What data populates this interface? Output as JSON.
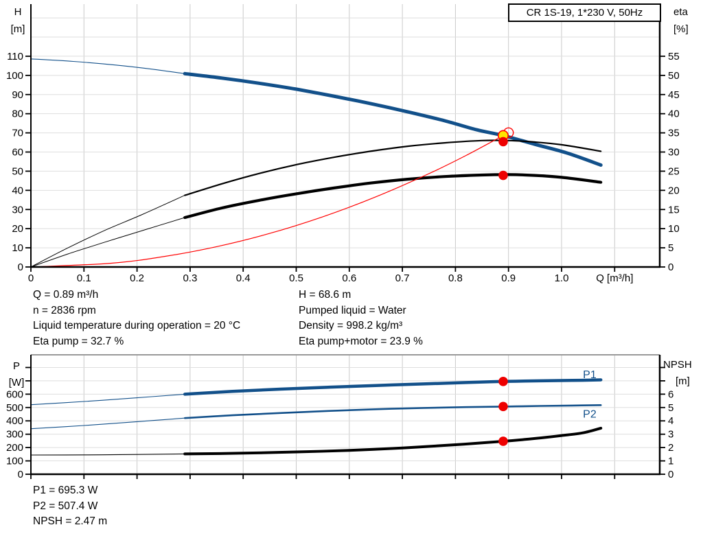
{
  "title_box": {
    "label": "CR 1S-19, 1*230 V, 50Hz"
  },
  "info_top": {
    "left": [
      "Q = 0.89 m³/h",
      "n = 2836 rpm",
      "Liquid temperature during operation = 20 °C",
      "Eta pump = 32.7 %"
    ],
    "right": [
      "H = 68.6 m",
      "Pumped liquid = Water",
      "Density = 998.2 kg/m³",
      "Eta pump+motor = 23.9 %"
    ]
  },
  "info_bottom": [
    "P1 = 695.3 W",
    "P2 = 507.4 W",
    "NPSH = 2.47 m"
  ],
  "colors": {
    "curve_blue": "#12508a",
    "curve_black": "#000000",
    "curve_red": "#ff0000",
    "marker_red": "#ee0000",
    "duty_yellow": "#ffe500",
    "grid_vertical": "#c9c9c9",
    "grid_horizontal": "#dedede",
    "axis": "#000000",
    "top_border_gray": "#999999"
  },
  "chart_data": [
    {
      "type": "line",
      "name": "qh-performance-chart",
      "x_axis": {
        "min": 0,
        "max": 1.185,
        "tick_values": [
          0,
          0.1,
          0.2,
          0.3,
          0.4,
          0.5,
          0.6,
          0.7,
          0.8,
          0.9,
          1.0,
          1.1
        ],
        "tick_labels": [
          "0",
          "0.1",
          "0.2",
          "0.3",
          "0.4",
          "0.5",
          "0.6",
          "0.7",
          "0.8",
          "0.9",
          "1.0",
          ""
        ],
        "grid_values": [
          0.1,
          0.2,
          0.3,
          0.4,
          0.5,
          0.6,
          0.7,
          0.8,
          0.9,
          1.0,
          1.1
        ],
        "label": "Q [m³/h]",
        "label_at": 1.1
      },
      "y_left": {
        "title": [
          "H",
          "[m]"
        ],
        "min": 0,
        "max": 137.2,
        "tick_values": [
          0,
          10,
          20,
          30,
          40,
          50,
          60,
          70,
          80,
          90,
          100,
          110
        ],
        "extra_tick_values": [],
        "grid_values": [
          10,
          20,
          30,
          40,
          50,
          60,
          70,
          80,
          90,
          100,
          110,
          120,
          130
        ]
      },
      "y_right": {
        "title": [
          "eta",
          "[%]"
        ],
        "min": 0,
        "max": 68.6,
        "tick_values": [
          0,
          5,
          10,
          15,
          20,
          25,
          30,
          35,
          40,
          45,
          50,
          55
        ],
        "extra_tick_values": []
      },
      "top_border": false,
      "series": [
        {
          "name": "head-curve",
          "color": "#12508a",
          "axis": "left",
          "segments": [
            {
              "w": 1.1,
              "points": [
                [
                  0,
                  108.6
                ],
                [
                  0.08,
                  107.3
                ],
                [
                  0.16,
                  105.4
                ],
                [
                  0.23,
                  103.2
                ],
                [
                  0.29,
                  100.9
                ]
              ]
            },
            {
              "w": 5.0,
              "points": [
                [
                  0.29,
                  100.9
                ],
                [
                  0.36,
                  98.6
                ],
                [
                  0.43,
                  95.9
                ],
                [
                  0.5,
                  92.8
                ],
                [
                  0.57,
                  89.2
                ],
                [
                  0.64,
                  85.3
                ],
                [
                  0.71,
                  81.0
                ],
                [
                  0.78,
                  76.3
                ],
                [
                  0.84,
                  71.6
                ],
                [
                  0.89,
                  68.6
                ],
                [
                  0.95,
                  64.0
                ],
                [
                  1.01,
                  59.5
                ],
                [
                  1.074,
                  53.2
                ]
              ]
            }
          ]
        },
        {
          "name": "eta-pump-curve",
          "color": "#000000",
          "axis": "right",
          "segments": [
            {
              "w": 1.0,
              "points": [
                [
                  0,
                  0
                ],
                [
                  0.07,
                  5.0
                ],
                [
                  0.14,
                  9.6
                ],
                [
                  0.21,
                  13.7
                ],
                [
                  0.29,
                  18.7
                ]
              ]
            },
            {
              "w": 2.2,
              "points": [
                [
                  0.29,
                  18.7
                ],
                [
                  0.36,
                  21.7
                ],
                [
                  0.43,
                  24.4
                ],
                [
                  0.5,
                  26.7
                ],
                [
                  0.57,
                  28.6
                ],
                [
                  0.64,
                  30.2
                ],
                [
                  0.71,
                  31.5
                ],
                [
                  0.78,
                  32.4
                ],
                [
                  0.85,
                  33.0
                ],
                [
                  0.9,
                  33.0
                ],
                [
                  0.95,
                  32.6
                ],
                [
                  1.0,
                  31.9
                ],
                [
                  1.074,
                  30.2
                ]
              ]
            }
          ]
        },
        {
          "name": "eta-pump-motor-curve",
          "color": "#000000",
          "axis": "right",
          "segments": [
            {
              "w": 1.0,
              "points": [
                [
                  0,
                  0
                ],
                [
                  0.07,
                  3.4
                ],
                [
                  0.14,
                  6.5
                ],
                [
                  0.21,
                  9.5
                ],
                [
                  0.29,
                  12.9
                ]
              ]
            },
            {
              "w": 4.2,
              "points": [
                [
                  0.29,
                  12.9
                ],
                [
                  0.36,
                  15.4
                ],
                [
                  0.43,
                  17.4
                ],
                [
                  0.5,
                  19.1
                ],
                [
                  0.57,
                  20.6
                ],
                [
                  0.64,
                  21.9
                ],
                [
                  0.71,
                  22.9
                ],
                [
                  0.78,
                  23.6
                ],
                [
                  0.85,
                  24.0
                ],
                [
                  0.9,
                  24.1
                ],
                [
                  0.95,
                  23.9
                ],
                [
                  1.0,
                  23.4
                ],
                [
                  1.074,
                  22.1
                ]
              ]
            }
          ]
        },
        {
          "name": "system-curve",
          "color": "#ff0000",
          "axis": "left",
          "segments": [
            {
              "w": 1.2,
              "points": [
                [
                  0,
                  0
                ],
                [
                  0.15,
                  1.95
                ],
                [
                  0.25,
                  5.4
                ],
                [
                  0.35,
                  10.6
                ],
                [
                  0.45,
                  17.5
                ],
                [
                  0.55,
                  26.2
                ],
                [
                  0.65,
                  36.6
                ],
                [
                  0.75,
                  48.7
                ],
                [
                  0.82,
                  58.2
                ],
                [
                  0.89,
                  68.6
                ]
              ]
            }
          ]
        }
      ],
      "series_labels": [],
      "markers": [
        {
          "name": "system-curve-end-marker",
          "type": "open",
          "x": 0.9,
          "v": 70.1,
          "axis": "left"
        },
        {
          "name": "duty-point",
          "type": "duty",
          "x": 0.89,
          "v": 68.6,
          "axis": "left"
        },
        {
          "name": "eta-pump-point",
          "type": "dot",
          "x": 0.89,
          "v": 32.7,
          "axis": "right"
        },
        {
          "name": "eta-pump-motor-point",
          "type": "dot",
          "x": 0.89,
          "v": 23.9,
          "axis": "right"
        }
      ]
    },
    {
      "type": "line",
      "name": "power-npsh-chart",
      "x_axis": {
        "min": 0,
        "max": 1.185,
        "tick_values": [
          0,
          0.1,
          0.2,
          0.3,
          0.4,
          0.5,
          0.6,
          0.7,
          0.8,
          0.9,
          1.0,
          1.1
        ],
        "tick_labels": [],
        "grid_values": [
          0.1,
          0.2,
          0.3,
          0.4,
          0.5,
          0.6,
          0.7,
          0.8,
          0.9,
          1.0,
          1.1
        ],
        "label": "",
        "label_at": null
      },
      "y_left": {
        "title": [
          "P",
          "[W]"
        ],
        "min": 0,
        "max": 895,
        "tick_values": [
          0,
          100,
          200,
          300,
          400,
          500,
          600
        ],
        "extra_tick_values": [
          700,
          800
        ],
        "grid_values": [
          100,
          200,
          300,
          400,
          500,
          600,
          700,
          800
        ]
      },
      "y_right": {
        "title": [
          "NPSH",
          "[m]"
        ],
        "min": 0,
        "max": 8.95,
        "tick_values": [
          0,
          1,
          2,
          3,
          4,
          5,
          6
        ],
        "extra_tick_values": [
          7,
          8
        ]
      },
      "top_border": true,
      "series": [
        {
          "name": "p1-curve",
          "color": "#12508a",
          "axis": "left",
          "segments": [
            {
              "w": 1.1,
              "points": [
                [
                  0,
                  521
                ],
                [
                  0.1,
                  545
                ],
                [
                  0.2,
                  573
                ],
                [
                  0.29,
                  600
                ]
              ]
            },
            {
              "w": 4.5,
              "points": [
                [
                  0.29,
                  600
                ],
                [
                  0.38,
                  621
                ],
                [
                  0.47,
                  638
                ],
                [
                  0.56,
                  652
                ],
                [
                  0.65,
                  665
                ],
                [
                  0.74,
                  677
                ],
                [
                  0.82,
                  687
                ],
                [
                  0.89,
                  695.3
                ],
                [
                  0.96,
                  700
                ],
                [
                  1.02,
                  703
                ],
                [
                  1.074,
                  707
                ]
              ]
            }
          ]
        },
        {
          "name": "p2-curve",
          "color": "#12508a",
          "axis": "left",
          "segments": [
            {
              "w": 1.1,
              "points": [
                [
                  0,
                  341
                ],
                [
                  0.1,
                  365
                ],
                [
                  0.2,
                  394
                ],
                [
                  0.29,
                  421
                ]
              ]
            },
            {
              "w": 2.6,
              "points": [
                [
                  0.29,
                  421
                ],
                [
                  0.38,
                  442
                ],
                [
                  0.47,
                  459
                ],
                [
                  0.56,
                  474
                ],
                [
                  0.65,
                  487
                ],
                [
                  0.74,
                  497
                ],
                [
                  0.82,
                  503
                ],
                [
                  0.89,
                  507.4
                ],
                [
                  0.96,
                  512
                ],
                [
                  1.02,
                  515
                ],
                [
                  1.074,
                  518
                ]
              ]
            }
          ]
        },
        {
          "name": "npsh-curve",
          "color": "#000000",
          "axis": "right",
          "segments": [
            {
              "w": 1.1,
              "points": [
                [
                  0,
                  1.44
                ],
                [
                  0.1,
                  1.45
                ],
                [
                  0.2,
                  1.48
                ],
                [
                  0.29,
                  1.52
                ]
              ]
            },
            {
              "w": 4.0,
              "points": [
                [
                  0.29,
                  1.52
                ],
                [
                  0.4,
                  1.58
                ],
                [
                  0.5,
                  1.67
                ],
                [
                  0.6,
                  1.79
                ],
                [
                  0.7,
                  1.97
                ],
                [
                  0.8,
                  2.21
                ],
                [
                  0.89,
                  2.47
                ],
                [
                  0.95,
                  2.68
                ],
                [
                  1.0,
                  2.9
                ],
                [
                  1.04,
                  3.1
                ],
                [
                  1.074,
                  3.45
                ]
              ]
            }
          ]
        }
      ],
      "series_labels": [
        {
          "text": "P1",
          "x": 1.053,
          "v": 745,
          "axis": "left"
        },
        {
          "text": "P2",
          "x": 1.053,
          "v": 450,
          "axis": "left"
        }
      ],
      "markers": [
        {
          "name": "p1-point",
          "type": "dot",
          "x": 0.89,
          "v": 695.3,
          "axis": "left"
        },
        {
          "name": "p2-point",
          "type": "dot",
          "x": 0.89,
          "v": 507.4,
          "axis": "left"
        },
        {
          "name": "npsh-point",
          "type": "dot",
          "x": 0.89,
          "v": 2.47,
          "axis": "right"
        }
      ]
    }
  ]
}
